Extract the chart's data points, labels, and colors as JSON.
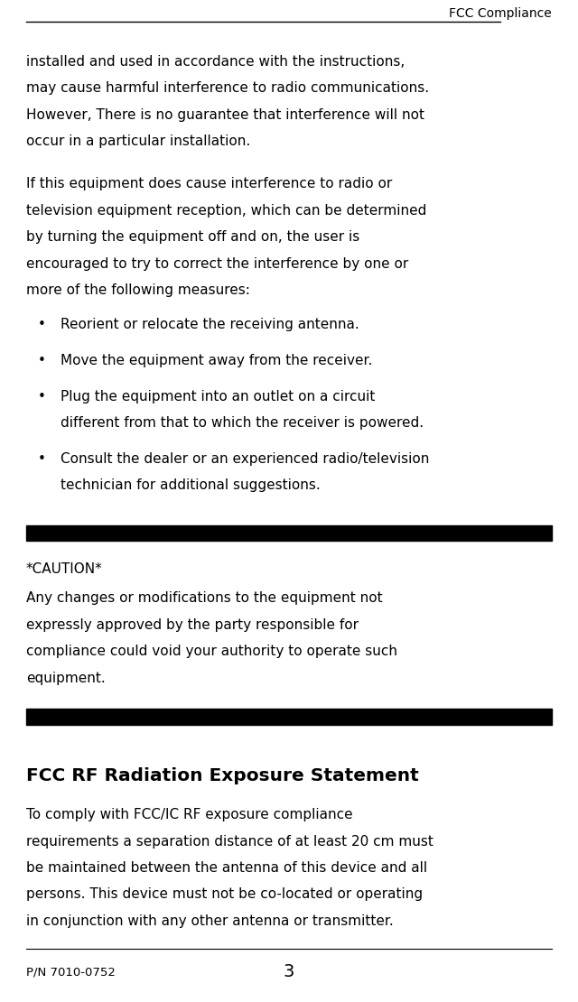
{
  "bg_color": "#ffffff",
  "text_color": "#000000",
  "header_text": "FCC Compliance",
  "page_number": "3",
  "part_number": "P/N 7010-0752",
  "para1": "installed and used in accordance with the instructions,\nmay cause harmful interference to radio communications.\nHowever, There is no guarantee that interference will not\noccur in a particular installation.",
  "para2": "If this equipment does cause interference to radio or\ntelevision equipment reception, which can be determined\nby turning the equipment off and on, the user is\nencouraged to try to correct the interference by one or\nmore of the following measures:",
  "bullets": [
    [
      "Reorient or relocate the receiving antenna."
    ],
    [
      "Move the equipment away from the receiver."
    ],
    [
      "Plug the equipment into an outlet on a circuit",
      "different from that to which the receiver is powered."
    ],
    [
      "Consult the dealer or an experienced radio/television",
      "technician for additional suggestions."
    ]
  ],
  "caution_label": "*CAUTION*",
  "caution_body": "Any changes or modifications to the equipment not\nexpressly approved by the party responsible for\ncompliance could void your authority to operate such\nequipment.",
  "rf_title": "FCC RF Radiation Exposure Statement",
  "rf_body": "To comply with FCC/IC RF exposure compliance\nrequirements a separation distance of at least 20 cm must\nbe maintained between the antenna of this device and all\npersons. This device must not be co-located or operating\nin conjunction with any other antenna or transmitter.",
  "header_font_size": 10.0,
  "body_font_size": 11.0,
  "rf_title_font_size": 14.5,
  "pn_font_size": 9.5,
  "page_num_font_size": 14.0
}
